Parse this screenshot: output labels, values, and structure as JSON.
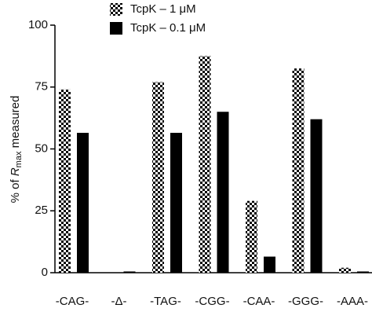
{
  "chart_data": {
    "type": "bar",
    "ylabel": [
      "% of ",
      "R",
      "max",
      " measured"
    ],
    "categories": [
      "-CAG-",
      "-Δ-",
      "-TAG-",
      "-CGG-",
      "-CAA-",
      "-GGG-",
      "-AAA-"
    ],
    "series": [
      {
        "name": "TcpK – 1 μM",
        "color": "#000000",
        "pattern": "checker",
        "values": [
          74,
          0,
          77,
          87.5,
          29,
          82.5,
          2
        ]
      },
      {
        "name": "TcpK – 0.1 μM",
        "color": "#000000",
        "pattern": "solid",
        "values": [
          56.5,
          0.5,
          56.5,
          65,
          6.5,
          62,
          0.5
        ]
      }
    ],
    "ylim": [
      0,
      100
    ],
    "yticks": [
      0,
      25,
      50,
      75,
      100
    ],
    "grid": false,
    "legend": "top"
  }
}
